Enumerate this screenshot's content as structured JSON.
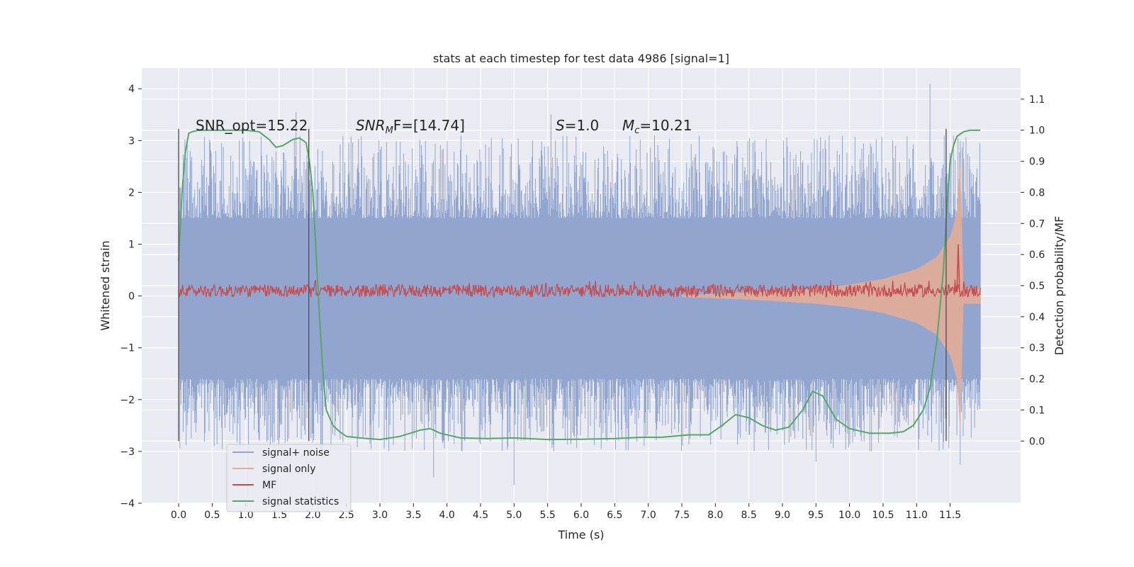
{
  "chart_data": {
    "type": "line",
    "title": "stats at each timestep for test data 4986 [signal=1]",
    "xlabel": "Time (s)",
    "ylabel": "Whitened strain",
    "ylabel_right": "Detection probability/MF",
    "xlim": [
      -0.55,
      12.55
    ],
    "ylim": [
      -4.0,
      4.4
    ],
    "ylim_right": [
      -0.2,
      1.2
    ],
    "x_ticks": [
      "0.0",
      "0.5",
      "1.0",
      "1.5",
      "2.0",
      "2.5",
      "3.0",
      "3.5",
      "4.0",
      "4.5",
      "5.0",
      "5.5",
      "6.0",
      "6.5",
      "7.0",
      "7.5",
      "8.0",
      "8.5",
      "9.0",
      "9.5",
      "10.0",
      "10.5",
      "11.0",
      "11.5"
    ],
    "y_ticks": [
      -4,
      -3,
      -2,
      -1,
      0,
      1,
      2,
      3,
      4
    ],
    "y_ticks_right": [
      "0.0",
      "0.1",
      "0.2",
      "0.3",
      "0.4",
      "0.5",
      "0.6",
      "0.7",
      "0.8",
      "0.9",
      "1.0",
      "1.1"
    ],
    "grid": true,
    "legend_position": "lower-left",
    "annotations": {
      "snr_opt": "SNR_opt=15.22",
      "snr_mf_sym": "SNR",
      "snr_mf_sub": "M",
      "snr_mf_rest": "F=[14.74]",
      "s_sym": "S",
      "s_rest": "=1.0",
      "mc_sym": "M",
      "mc_sub": "c",
      "mc_rest": "=10.21"
    },
    "vlines": [
      0.0,
      1.94,
      11.44
    ],
    "series": [
      {
        "name": "signal+ noise",
        "color": "#92a5cf",
        "axis": "left",
        "x_range": [
          0.0,
          11.95
        ],
        "envelope": [
          1.45,
          -1.55
        ],
        "spike_max": 4.1,
        "spike_min": -3.65,
        "notable_spikes": [
          [
            1.75,
            3.55
          ],
          [
            5.55,
            3.5
          ],
          [
            11.2,
            4.1
          ],
          [
            5.0,
            -3.65
          ],
          [
            3.8,
            -3.5
          ],
          [
            11.65,
            -3.25
          ],
          [
            9.5,
            -3.2
          ]
        ]
      },
      {
        "name": "signal only",
        "color": "#e8ab92",
        "axis": "left",
        "x": [
          7.5,
          8.5,
          9.5,
          10.0,
          10.5,
          11.0,
          11.3,
          11.5,
          11.6,
          11.65,
          11.7,
          11.95
        ],
        "amplitude": [
          0.02,
          0.07,
          0.15,
          0.22,
          0.33,
          0.52,
          0.75,
          1.15,
          1.6,
          2.6,
          0.15,
          0.15
        ]
      },
      {
        "name": "MF",
        "color": "#c44e52",
        "axis": "left",
        "x_range": [
          0.0,
          11.95
        ],
        "center": 0.08,
        "band": [
          -0.02,
          0.22
        ],
        "peak": [
          11.62,
          1.0
        ]
      },
      {
        "name": "signal statistics",
        "color": "#55a868",
        "axis": "right",
        "x": [
          0.0,
          0.05,
          0.1,
          0.15,
          0.2,
          0.3,
          0.5,
          0.8,
          1.0,
          1.2,
          1.35,
          1.45,
          1.55,
          1.7,
          1.8,
          1.9,
          1.95,
          2.0,
          2.05,
          2.1,
          2.15,
          2.2,
          2.3,
          2.4,
          2.5,
          2.7,
          3.0,
          3.3,
          3.6,
          3.75,
          3.9,
          4.2,
          4.6,
          5.0,
          5.5,
          6.0,
          6.5,
          6.9,
          7.2,
          7.6,
          7.9,
          8.1,
          8.3,
          8.5,
          8.7,
          8.9,
          9.1,
          9.3,
          9.45,
          9.6,
          9.8,
          10.0,
          10.3,
          10.6,
          10.8,
          10.95,
          11.1,
          11.2,
          11.3,
          11.4,
          11.45,
          11.5,
          11.55,
          11.6,
          11.7,
          11.8,
          11.95
        ],
        "y": [
          0.58,
          0.8,
          0.93,
          0.99,
          0.995,
          1.0,
          1.0,
          1.0,
          1.0,
          0.995,
          0.97,
          0.945,
          0.95,
          0.97,
          0.975,
          0.96,
          0.9,
          0.8,
          0.6,
          0.4,
          0.22,
          0.1,
          0.05,
          0.03,
          0.015,
          0.01,
          0.005,
          0.015,
          0.035,
          0.04,
          0.025,
          0.01,
          0.008,
          0.01,
          0.005,
          0.006,
          0.008,
          0.012,
          0.012,
          0.02,
          0.02,
          0.05,
          0.085,
          0.075,
          0.05,
          0.035,
          0.045,
          0.1,
          0.16,
          0.145,
          0.07,
          0.04,
          0.025,
          0.025,
          0.03,
          0.05,
          0.1,
          0.17,
          0.32,
          0.55,
          0.75,
          0.9,
          0.95,
          0.98,
          0.995,
          1.0,
          1.0
        ]
      }
    ]
  }
}
